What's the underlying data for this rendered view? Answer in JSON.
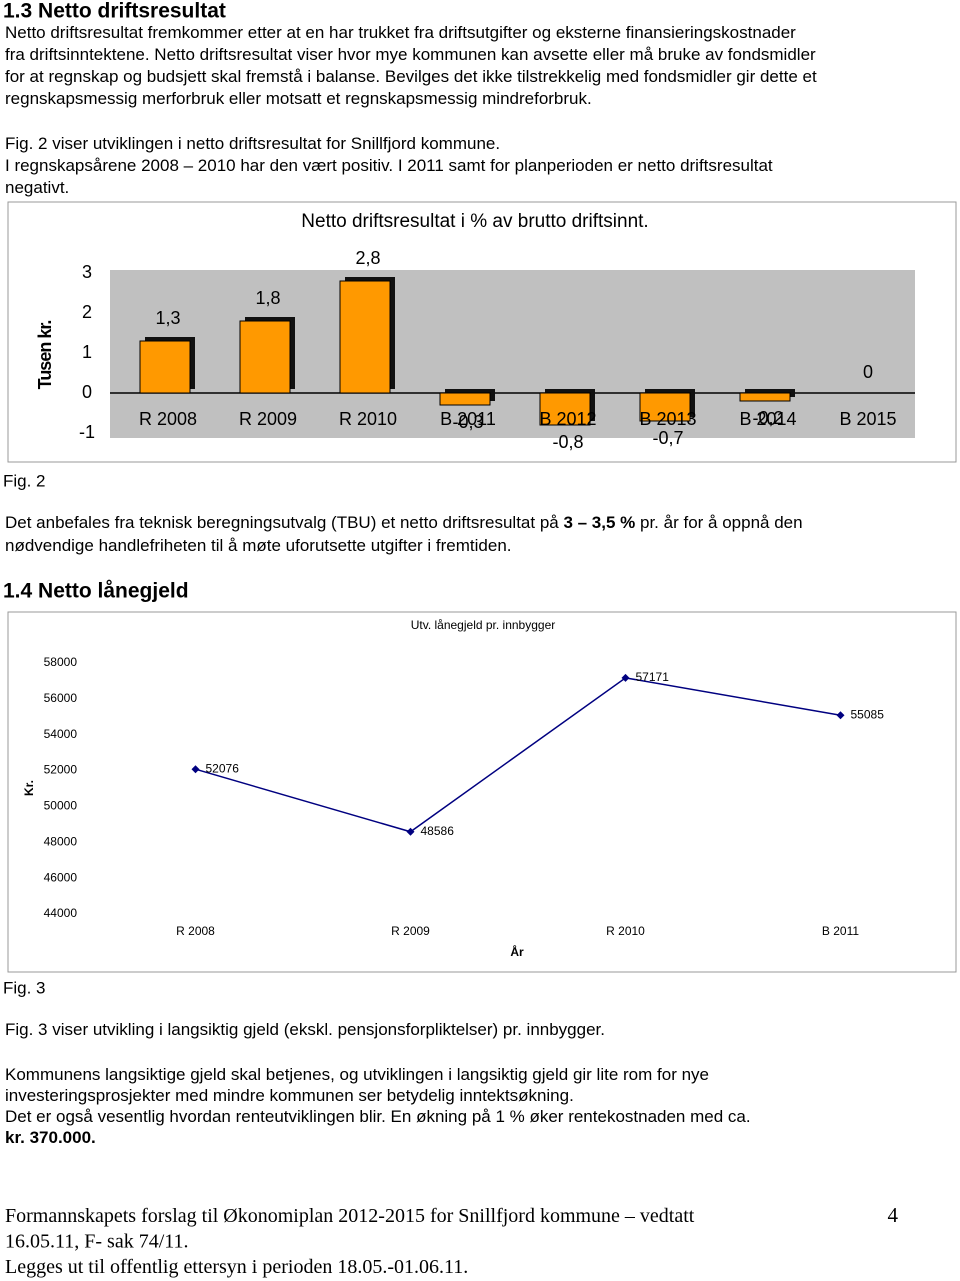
{
  "heading_1_3": "1.3 Netto driftsresultat",
  "paragraph_1": {
    "lines": [
      [
        "Netto driftsresultat fremkommer etter at en har trukket fra driftsutgifter og eksterne finansieringskostnader"
      ],
      [
        "fra driftsinntektene. Netto driftsresultat viser hvor mye kommunen kan avsette eller må bruke av fondsmidler"
      ],
      [
        "for at regnskap og budsjett skal fremstå i balanse. Bevilges det ikke tilstrekkelig med fondsmidler gir dette et"
      ],
      [
        "regnskapsmessig merforbruk eller motsatt et regnskapsmessig mindreforbruk."
      ]
    ]
  },
  "paragraph_2": {
    "lines": [
      [
        "Fig. 2 viser utviklingen i netto driftsresultat for Snillfjord kommune."
      ],
      [
        "I regnskapsårene 2008 – 2010 har den vært positiv. I 2011 samt for planperioden er netto driftsresultat"
      ],
      [
        "negativt."
      ]
    ]
  },
  "fig2_label": "Fig. 2",
  "paragraph_3": {
    "lines": [
      [
        "Det anbefales fra teknisk beregningsutvalg (TBU) et netto driftsresultat på ",
        {
          "text": "3 – 3,5 %",
          "bold": true
        },
        " pr. år for å oppnå den"
      ],
      [
        "nødvendige handlefriheten til å møte uforutsette utgifter i fremtiden."
      ]
    ]
  },
  "heading_1_4": "1.4 Netto lånegjeld",
  "fig3_label": "Fig. 3",
  "paragraph_4": {
    "lines": [
      [
        "Fig. 3 viser utvikling i langsiktig gjeld (ekskl. pensjonsforpliktelser) pr. innbygger."
      ]
    ]
  },
  "paragraph_5": {
    "lines": [
      [
        "Kommunens langsiktige gjeld skal betjenes, og utviklingen i langsiktig gjeld gir lite rom for nye"
      ],
      [
        "investeringsprosjekter med mindre kommunen ser betydelig inntektsøkning."
      ],
      [
        "Det er også vesentlig hvordan renteutviklingen blir. En økning på 1 % øker rentekostnaden med ca."
      ],
      [
        {
          "text": "kr. 370.000.",
          "bold": true
        }
      ]
    ]
  },
  "footer": {
    "lines": [
      [
        "Formannskapets forslag til Økonomiplan 2012-2015 for Snillfjord kommune – vedtatt"
      ],
      [
        "16.05.11, F- sak 74/11."
      ],
      [
        "Legges ut til offentlig ettersyn i perioden 18.05.-01.06.11."
      ]
    ]
  },
  "page_number": "4",
  "chart_data": [
    {
      "type": "bar",
      "title": "Netto driftsresultat i % av brutto driftsinnt.",
      "y_label": "Tusen kr.",
      "categories": [
        "R 2008",
        "R 2009",
        "R 2010",
        "B 2011",
        "B 2012",
        "B 2013",
        "B 2014",
        "B 2015"
      ],
      "values": [
        1.3,
        1.8,
        2.8,
        -0.3,
        -0.8,
        -0.7,
        -0.2,
        0
      ],
      "value_labels": [
        "1,3",
        "1,8",
        "2,8",
        "-0,3",
        "-0,8",
        "-0,7",
        "-0,2",
        "0"
      ],
      "color": "#ff9900",
      "ylim": [
        -1,
        3
      ],
      "yticks": [
        -1,
        0,
        1,
        2,
        3
      ]
    },
    {
      "type": "line",
      "title": "Utv. lånegjeld pr. innbygger",
      "x_label": "År",
      "y_label": "Kr.",
      "categories": [
        "R 2008",
        "R 2009",
        "R 2010",
        "B 2011"
      ],
      "values": [
        52076,
        48586,
        57171,
        55085
      ],
      "color": "#000080",
      "ylim": [
        44000,
        58000
      ],
      "yticks": [
        44000,
        46000,
        48000,
        50000,
        52000,
        54000,
        56000,
        58000
      ]
    }
  ]
}
